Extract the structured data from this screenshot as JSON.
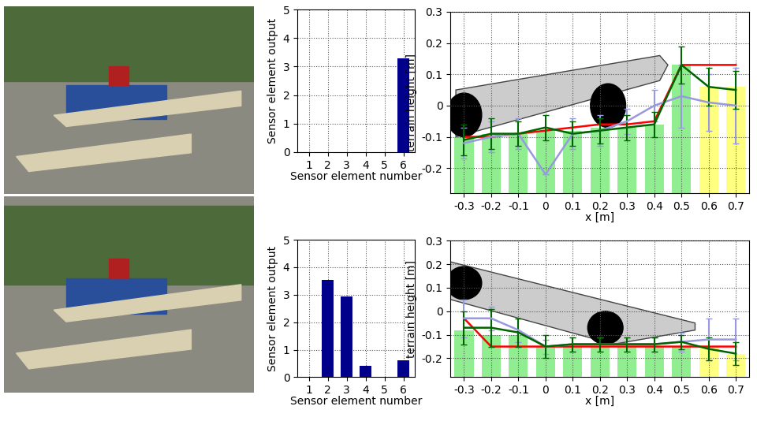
{
  "chart_data": [
    {
      "type": "bar",
      "categories": [
        "1",
        "2",
        "3",
        "4",
        "5",
        "6"
      ],
      "values": [
        0,
        0,
        0,
        0,
        0,
        3.3
      ],
      "color": "#00008b",
      "xlabel": "Sensor element number",
      "ylabel": "Sensor element output",
      "ylim": [
        0,
        5
      ],
      "yticks": [
        0,
        1,
        2,
        3,
        4,
        5
      ],
      "grid": true
    },
    {
      "type": "line",
      "xlabel": "x [m]",
      "ylabel": "terrain height [m]",
      "x": [
        -0.3,
        -0.2,
        -0.1,
        0,
        0.1,
        0.2,
        0.3,
        0.4,
        0.5,
        0.6,
        0.7
      ],
      "xlim": [
        -0.35,
        0.75
      ],
      "xticks": [
        -0.3,
        -0.2,
        -0.1,
        0,
        0.1,
        0.2,
        0.3,
        0.4,
        0.5,
        0.6,
        0.7
      ],
      "ylim": [
        -0.28,
        0.3
      ],
      "yticks": [
        -0.2,
        -0.1,
        0,
        0.1,
        0.2,
        0.3
      ],
      "grid": true,
      "series": [
        {
          "type": "bar",
          "values": [
            -0.1,
            -0.09,
            -0.09,
            -0.08,
            -0.08,
            -0.07,
            -0.07,
            -0.06,
            0.13,
            0.06,
            0.06
          ],
          "colors": [
            "#90ee90",
            "#90ee90",
            "#90ee90",
            "#90ee90",
            "#90ee90",
            "#90ee90",
            "#90ee90",
            "#90ee90",
            "#90ee90",
            "#ffff80",
            "#ffff80"
          ]
        },
        {
          "type": "line",
          "color": "#9999dd",
          "values": [
            -0.12,
            -0.1,
            -0.09,
            -0.22,
            -0.09,
            -0.08,
            -0.05,
            0.0,
            0.03,
            0.01,
            0.0
          ],
          "errors": [
            0.05,
            0.05,
            0.05,
            0.0,
            0.05,
            0.05,
            0.04,
            0.05,
            0.1,
            0.09,
            0.12
          ]
        },
        {
          "type": "line",
          "color": "#ff0000",
          "values": [
            -0.1,
            -0.1,
            -0.09,
            -0.08,
            -0.07,
            -0.06,
            -0.06,
            -0.05,
            0.13,
            0.13,
            0.13
          ]
        },
        {
          "type": "line",
          "color": "#006400",
          "values": [
            -0.11,
            -0.09,
            -0.09,
            -0.07,
            -0.09,
            -0.08,
            -0.07,
            -0.06,
            0.13,
            0.06,
            0.05
          ],
          "errors": [
            0.05,
            0.05,
            0.04,
            0.04,
            0.04,
            0.04,
            0.04,
            0.04,
            0.06,
            0.06,
            0.06
          ]
        }
      ]
    },
    {
      "type": "bar",
      "categories": [
        "1",
        "2",
        "3",
        "4",
        "5",
        "6"
      ],
      "values": [
        0,
        3.55,
        2.95,
        0.4,
        0,
        0.6
      ],
      "color": "#00008b",
      "xlabel": "Sensor element number",
      "ylabel": "Sensor element output",
      "ylim": [
        0,
        5
      ],
      "yticks": [
        0,
        1,
        2,
        3,
        4,
        5
      ],
      "grid": true
    },
    {
      "type": "line",
      "xlabel": "x [m]",
      "ylabel": "terrain height [m]",
      "x": [
        -0.3,
        -0.2,
        -0.1,
        0,
        0.1,
        0.2,
        0.3,
        0.4,
        0.5,
        0.6,
        0.7
      ],
      "xlim": [
        -0.35,
        0.75
      ],
      "xticks": [
        -0.3,
        -0.2,
        -0.1,
        0,
        0.1,
        0.2,
        0.3,
        0.4,
        0.5,
        0.6,
        0.7
      ],
      "ylim": [
        -0.28,
        0.3
      ],
      "yticks": [
        -0.2,
        -0.1,
        0,
        0.1,
        0.2,
        0.3
      ],
      "grid": true,
      "series": [
        {
          "type": "bar",
          "values": [
            -0.08,
            -0.1,
            -0.1,
            -0.15,
            -0.15,
            -0.15,
            -0.15,
            -0.15,
            -0.15,
            -0.15,
            -0.18
          ],
          "colors": [
            "#90ee90",
            "#90ee90",
            "#90ee90",
            "#90ee90",
            "#90ee90",
            "#90ee90",
            "#90ee90",
            "#90ee90",
            "#90ee90",
            "#ffff80",
            "#ffff80"
          ]
        },
        {
          "type": "line",
          "color": "#9999dd",
          "values": [
            -0.03,
            -0.03,
            -0.08,
            -0.15,
            -0.14,
            -0.14,
            -0.14,
            -0.14,
            -0.13,
            -0.12,
            -0.12
          ],
          "errors": [
            0.08,
            0.05,
            0.05,
            0.03,
            0.03,
            0.03,
            0.03,
            0.03,
            0.04,
            0.09,
            0.09
          ]
        },
        {
          "type": "line",
          "color": "#ff0000",
          "values": [
            -0.03,
            -0.15,
            -0.15,
            -0.15,
            -0.15,
            -0.15,
            -0.15,
            -0.15,
            -0.15,
            -0.15,
            -0.15
          ]
        },
        {
          "type": "line",
          "color": "#006400",
          "values": [
            -0.07,
            -0.07,
            -0.09,
            -0.15,
            -0.14,
            -0.14,
            -0.14,
            -0.14,
            -0.13,
            -0.16,
            -0.18
          ],
          "errors": [
            0.07,
            0.08,
            0.06,
            0.05,
            0.03,
            0.03,
            0.03,
            0.03,
            0.03,
            0.05,
            0.05
          ]
        }
      ]
    }
  ]
}
